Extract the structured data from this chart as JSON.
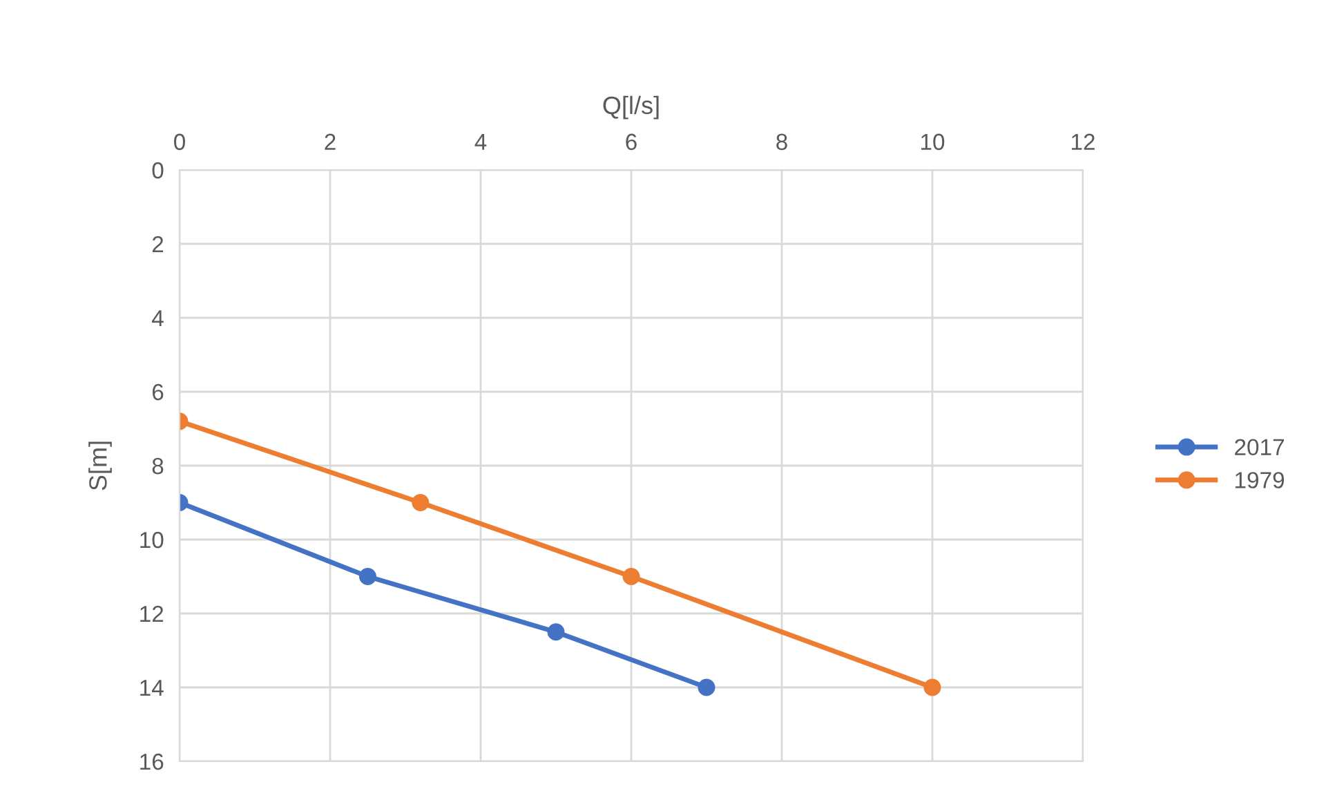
{
  "chart_data": {
    "type": "line",
    "xlabel": "Q[l/s]",
    "ylabel": "S[m]",
    "xlim": [
      0,
      12
    ],
    "xticks": [
      0,
      2,
      4,
      6,
      8,
      10,
      12
    ],
    "ylim": [
      16,
      0
    ],
    "yticks": [
      0,
      2,
      4,
      6,
      8,
      10,
      12,
      14,
      16
    ],
    "grid": true,
    "legend": "right",
    "marker": "circle",
    "line_style": "solid",
    "series": [
      {
        "name": "2017",
        "color": "#4472c4",
        "x": [
          0,
          2.5,
          5,
          7
        ],
        "values": [
          9,
          11,
          12.5,
          14
        ]
      },
      {
        "name": "1979",
        "color": "#ed7d31",
        "x": [
          0,
          3.2,
          6,
          10
        ],
        "values": [
          6.8,
          9,
          11,
          14
        ]
      }
    ]
  }
}
